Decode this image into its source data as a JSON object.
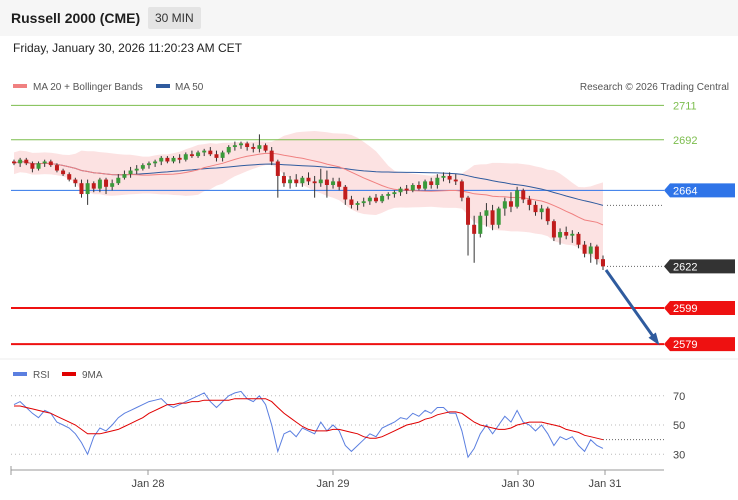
{
  "header": {
    "title": "Russell 2000 (CME)",
    "interval": "30 MIN",
    "datetime": "Friday, January 30, 2026 11:20:23 AM CET"
  },
  "legend": {
    "ma20": {
      "label": "MA 20 + Bollinger Bands",
      "color": "#f08080"
    },
    "ma50": {
      "label": "MA 50",
      "color": "#2f5b9e"
    },
    "copyright": "Research © 2026 Trading Central"
  },
  "rsi_legend": {
    "rsi": {
      "label": "RSI",
      "color": "#5b7fe0"
    },
    "ma9": {
      "label": "9MA",
      "color": "#e00000"
    }
  },
  "chart_data": [
    {
      "type": "candlestick",
      "title": "Russell 2000 (CME)",
      "ylim": [
        2573,
        2714
      ],
      "x_ticks": [
        "Jan 28",
        "Jan 29",
        "Jan 30",
        "Jan 31"
      ],
      "levels": [
        {
          "value": 2711,
          "label": "2711",
          "kind": "resistance",
          "color": "#7cbd4d"
        },
        {
          "value": 2692,
          "label": "2692",
          "kind": "resistance",
          "color": "#7cbd4d"
        },
        {
          "value": 2664,
          "label": "2664",
          "kind": "pivot",
          "color": "#2f74e8"
        },
        {
          "value": 2622,
          "label": "2622",
          "kind": "last",
          "color": "#333333"
        },
        {
          "value": 2599,
          "label": "2599",
          "kind": "support",
          "color": "#ee1111"
        },
        {
          "value": 2579,
          "label": "2579",
          "kind": "support",
          "color": "#ee1111"
        }
      ],
      "series": [
        {
          "name": "MA 20",
          "color": "#f08080"
        },
        {
          "name": "MA 50",
          "color": "#2f5b9e"
        }
      ],
      "candles": [
        [
          2680,
          2681,
          2678,
          2679
        ],
        [
          2679,
          2682,
          2677,
          2681
        ],
        [
          2681,
          2682,
          2678,
          2679
        ],
        [
          2679,
          2680,
          2674,
          2676
        ],
        [
          2676,
          2680,
          2675,
          2679
        ],
        [
          2679,
          2681,
          2677,
          2680
        ],
        [
          2680,
          2681,
          2677,
          2678
        ],
        [
          2678,
          2679,
          2674,
          2675
        ],
        [
          2675,
          2676,
          2672,
          2673
        ],
        [
          2673,
          2674,
          2669,
          2670
        ],
        [
          2670,
          2671,
          2666,
          2668
        ],
        [
          2668,
          2670,
          2660,
          2662
        ],
        [
          2662,
          2670,
          2656,
          2668
        ],
        [
          2668,
          2669,
          2663,
          2665
        ],
        [
          2665,
          2671,
          2663,
          2670
        ],
        [
          2670,
          2671,
          2662,
          2666
        ],
        [
          2666,
          2670,
          2664,
          2668
        ],
        [
          2668,
          2673,
          2667,
          2671
        ],
        [
          2671,
          2675,
          2670,
          2673
        ],
        [
          2673,
          2677,
          2671,
          2675
        ],
        [
          2675,
          2678,
          2673,
          2676
        ],
        [
          2676,
          2679,
          2675,
          2678
        ],
        [
          2678,
          2680,
          2676,
          2679
        ],
        [
          2679,
          2681,
          2677,
          2680
        ],
        [
          2680,
          2683,
          2678,
          2682
        ],
        [
          2682,
          2683,
          2679,
          2680
        ],
        [
          2680,
          2683,
          2679,
          2682
        ],
        [
          2682,
          2684,
          2679,
          2681
        ],
        [
          2681,
          2685,
          2680,
          2684
        ],
        [
          2684,
          2686,
          2682,
          2683
        ],
        [
          2683,
          2686,
          2682,
          2685
        ],
        [
          2685,
          2687,
          2683,
          2686
        ],
        [
          2686,
          2688,
          2683,
          2684
        ],
        [
          2684,
          2686,
          2680,
          2682
        ],
        [
          2682,
          2686,
          2680,
          2685
        ],
        [
          2685,
          2689,
          2684,
          2688
        ],
        [
          2688,
          2691,
          2686,
          2689
        ],
        [
          2689,
          2691,
          2687,
          2690
        ],
        [
          2690,
          2691,
          2686,
          2688
        ],
        [
          2688,
          2690,
          2685,
          2687
        ],
        [
          2687,
          2695,
          2685,
          2689
        ],
        [
          2689,
          2690,
          2685,
          2686
        ],
        [
          2686,
          2688,
          2678,
          2680
        ],
        [
          2680,
          2681,
          2660,
          2672
        ],
        [
          2672,
          2674,
          2666,
          2668
        ],
        [
          2668,
          2672,
          2665,
          2670
        ],
        [
          2670,
          2673,
          2666,
          2668
        ],
        [
          2668,
          2672,
          2666,
          2671
        ],
        [
          2671,
          2674,
          2667,
          2669
        ],
        [
          2669,
          2672,
          2660,
          2668
        ],
        [
          2668,
          2676,
          2666,
          2670
        ],
        [
          2670,
          2675,
          2660,
          2667
        ],
        [
          2667,
          2671,
          2665,
          2669
        ],
        [
          2669,
          2671,
          2664,
          2666
        ],
        [
          2666,
          2667,
          2656,
          2659
        ],
        [
          2659,
          2661,
          2654,
          2656
        ],
        [
          2656,
          2658,
          2653,
          2657
        ],
        [
          2657,
          2660,
          2655,
          2658
        ],
        [
          2658,
          2661,
          2656,
          2660
        ],
        [
          2660,
          2662,
          2657,
          2658
        ],
        [
          2658,
          2662,
          2657,
          2661
        ],
        [
          2661,
          2663,
          2659,
          2662
        ],
        [
          2662,
          2664,
          2660,
          2663
        ],
        [
          2663,
          2666,
          2661,
          2665
        ],
        [
          2665,
          2667,
          2662,
          2664
        ],
        [
          2664,
          2668,
          2663,
          2667
        ],
        [
          2667,
          2669,
          2664,
          2665
        ],
        [
          2665,
          2670,
          2664,
          2669
        ],
        [
          2669,
          2671,
          2665,
          2667
        ],
        [
          2667,
          2673,
          2665,
          2671
        ],
        [
          2671,
          2674,
          2669,
          2672
        ],
        [
          2672,
          2674,
          2668,
          2670
        ],
        [
          2670,
          2673,
          2667,
          2669
        ],
        [
          2669,
          2670,
          2658,
          2660
        ],
        [
          2660,
          2661,
          2628,
          2645
        ],
        [
          2645,
          2650,
          2624,
          2640
        ],
        [
          2640,
          2652,
          2638,
          2650
        ],
        [
          2650,
          2657,
          2644,
          2653
        ],
        [
          2653,
          2656,
          2642,
          2645
        ],
        [
          2645,
          2655,
          2643,
          2654
        ],
        [
          2654,
          2660,
          2650,
          2658
        ],
        [
          2658,
          2663,
          2652,
          2655
        ],
        [
          2655,
          2666,
          2654,
          2664
        ],
        [
          2664,
          2665,
          2657,
          2659
        ],
        [
          2659,
          2661,
          2653,
          2656
        ],
        [
          2656,
          2658,
          2650,
          2652
        ],
        [
          2652,
          2656,
          2648,
          2654
        ],
        [
          2654,
          2655,
          2645,
          2647
        ],
        [
          2647,
          2648,
          2636,
          2638
        ],
        [
          2638,
          2643,
          2634,
          2641
        ],
        [
          2641,
          2644,
          2637,
          2639
        ],
        [
          2639,
          2642,
          2635,
          2640
        ],
        [
          2640,
          2641,
          2632,
          2634
        ],
        [
          2634,
          2636,
          2627,
          2629
        ],
        [
          2629,
          2635,
          2624,
          2633
        ],
        [
          2633,
          2634,
          2623,
          2626
        ],
        [
          2626,
          2628,
          2620,
          2622
        ]
      ]
    },
    {
      "type": "line",
      "title": "RSI",
      "ylim": [
        22,
        76
      ],
      "y_ticks": [
        70,
        50,
        30
      ],
      "series": [
        {
          "name": "RSI",
          "color": "#5b7fe0",
          "values": [
            64,
            66,
            62,
            58,
            55,
            60,
            58,
            52,
            50,
            48,
            44,
            38,
            30,
            42,
            48,
            46,
            50,
            55,
            58,
            60,
            62,
            64,
            66,
            67,
            68,
            64,
            62,
            64,
            66,
            68,
            70,
            72,
            66,
            62,
            66,
            70,
            72,
            73,
            68,
            66,
            70,
            64,
            50,
            32,
            44,
            46,
            42,
            48,
            46,
            44,
            52,
            46,
            50,
            46,
            36,
            32,
            36,
            40,
            44,
            42,
            48,
            50,
            52,
            55,
            54,
            58,
            56,
            60,
            58,
            62,
            62,
            58,
            58,
            46,
            28,
            34,
            44,
            50,
            44,
            50,
            56,
            52,
            60,
            52,
            50,
            46,
            50,
            44,
            36,
            42,
            40,
            42,
            36,
            32,
            40,
            36,
            34
          ]
        },
        {
          "name": "9MA",
          "color": "#e00000",
          "values": [
            63,
            63,
            62,
            61,
            60,
            59,
            58,
            56,
            54,
            52,
            50,
            47,
            44,
            44,
            44,
            45,
            46,
            47,
            49,
            51,
            53,
            55,
            58,
            60,
            62,
            64,
            64,
            65,
            65,
            66,
            66,
            67,
            67,
            67,
            67,
            67,
            68,
            68,
            68,
            68,
            68,
            68,
            66,
            62,
            58,
            55,
            52,
            49,
            47,
            46,
            46,
            46,
            47,
            47,
            46,
            45,
            44,
            42,
            41,
            41,
            42,
            44,
            46,
            48,
            50,
            51,
            52,
            54,
            55,
            57,
            58,
            59,
            59,
            58,
            55,
            52,
            50,
            49,
            48,
            47,
            47,
            48,
            50,
            51,
            52,
            52,
            52,
            51,
            50,
            49,
            47,
            46,
            45,
            43,
            42,
            41,
            40
          ]
        }
      ]
    }
  ]
}
